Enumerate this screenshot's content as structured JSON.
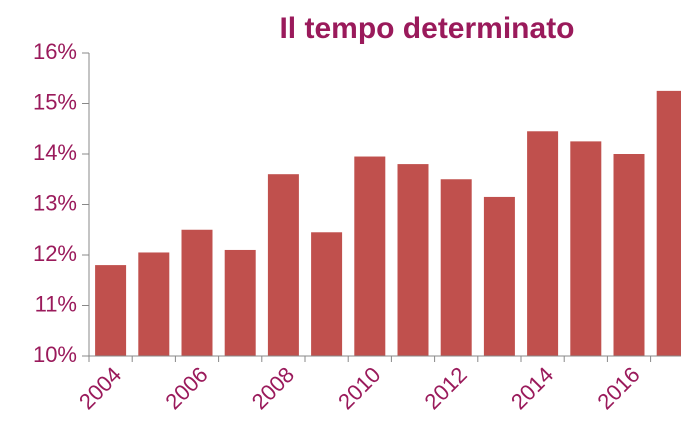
{
  "chart_data": {
    "type": "bar",
    "title": "Il tempo determinato",
    "categories": [
      "2004",
      null,
      "2006",
      null,
      "2008",
      null,
      "2010",
      null,
      "2012",
      null,
      "2014",
      null,
      "2016",
      null
    ],
    "values": [
      11.8,
      12.05,
      12.5,
      12.1,
      13.6,
      12.45,
      13.95,
      13.8,
      13.5,
      13.15,
      14.45,
      14.25,
      14.0,
      15.25
    ],
    "color": "#c0504d",
    "ylim": [
      10,
      16
    ],
    "yticks": [
      {
        "value": 10,
        "label": "10%"
      },
      {
        "value": 11,
        "label": "11%"
      },
      {
        "value": 12,
        "label": "12%"
      },
      {
        "value": 13,
        "label": "13%"
      },
      {
        "value": 14,
        "label": "14%"
      },
      {
        "value": 15,
        "label": "15%"
      },
      {
        "value": 16,
        "label": "16%"
      }
    ],
    "grid": false
  }
}
